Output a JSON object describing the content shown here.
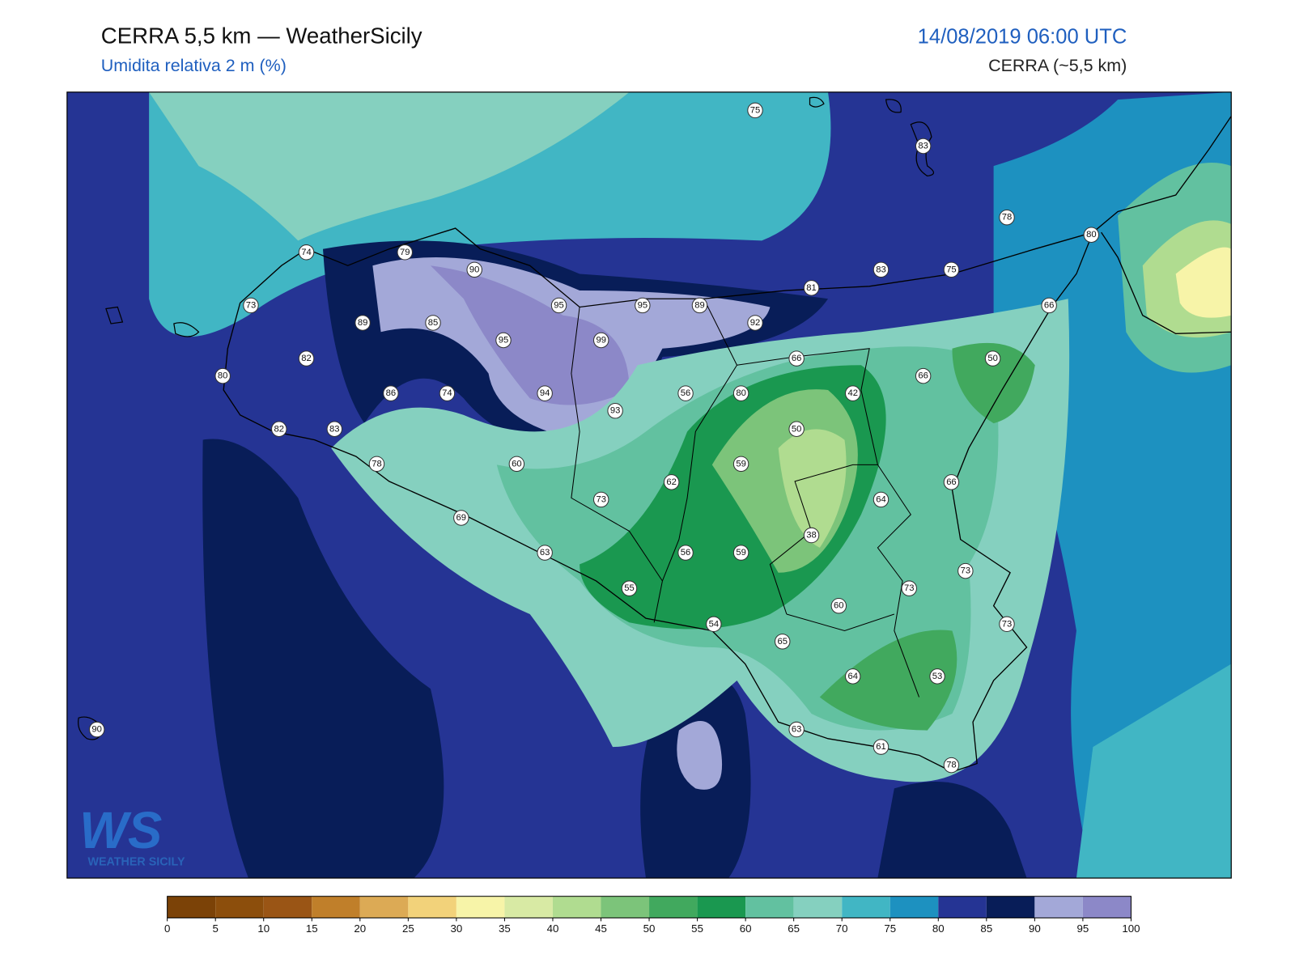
{
  "header": {
    "title": "CERRA 5,5 km — WeatherSicily",
    "subtitle": "Umidita relativa 2 m (%)",
    "datetime": "14/08/2019 06:00 UTC",
    "model": "CERRA (~5,5 km)"
  },
  "stations": [
    75,
    83,
    78,
    80,
    74,
    79,
    90,
    83,
    75,
    81,
    73,
    95,
    95,
    89,
    66,
    89,
    85,
    92,
    95,
    99,
    82,
    66,
    50,
    80,
    66,
    86,
    74,
    94,
    56,
    80,
    42,
    93,
    82,
    83,
    50,
    78,
    60,
    59,
    62,
    66,
    73,
    64,
    69,
    38,
    63,
    56,
    59,
    73,
    55,
    73,
    60,
    54,
    73,
    65,
    64,
    53,
    90,
    63,
    61,
    78
  ],
  "colorbar": {
    "ticks": [
      0,
      5,
      10,
      15,
      20,
      25,
      30,
      35,
      40,
      45,
      50,
      55,
      60,
      65,
      70,
      75,
      80,
      85,
      90,
      95,
      100
    ],
    "colors": [
      "#7b4207",
      "#8c4e0c",
      "#9a5515",
      "#c07f2a",
      "#dcaa55",
      "#f2d27a",
      "#f7f4a8",
      "#d8eaa4",
      "#b0dc90",
      "#7cc47a",
      "#41a95e",
      "#1a9850",
      "#62c1a0",
      "#85d0bf",
      "#41b6c4",
      "#1d91c0",
      "#253494",
      "#081d58",
      "#a3a8d8",
      "#8c88c8"
    ]
  },
  "logo": {
    "mark": "WS",
    "text": "WEATHER SICILY"
  }
}
